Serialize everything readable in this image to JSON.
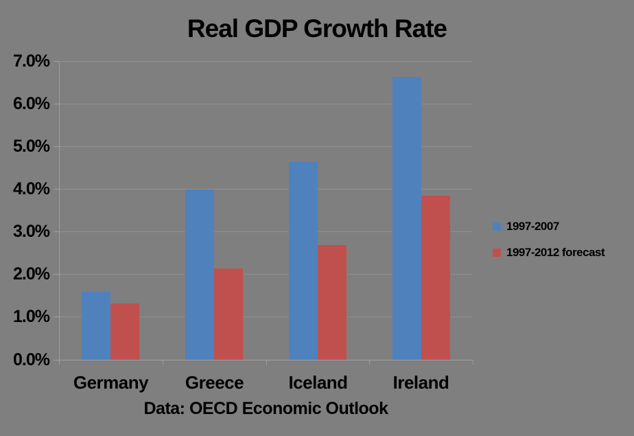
{
  "chart_data": {
    "type": "bar",
    "title": "Real GDP Growth Rate",
    "caption": "Data: OECD Economic Outlook",
    "categories": [
      "Germany",
      "Greece",
      "Iceland",
      "Ireland"
    ],
    "series": [
      {
        "name": "1997-2007",
        "color": "#4f81bd",
        "values": [
          1.6,
          4.0,
          4.65,
          6.65
        ]
      },
      {
        "name": "1997-2012 forecast",
        "color": "#c0504d",
        "values": [
          1.33,
          2.15,
          2.7,
          3.85
        ]
      }
    ],
    "y_tick_labels": [
      "0.0%",
      "1.0%",
      "2.0%",
      "3.0%",
      "4.0%",
      "5.0%",
      "6.0%",
      "7.0%"
    ],
    "ylim": [
      0,
      7
    ],
    "grid": true,
    "legend_position": "right",
    "colors": {
      "background": "#7f7f7f",
      "gridline": "#8f8f8f",
      "axis": "#9e9e9e",
      "text": "#000000"
    }
  }
}
